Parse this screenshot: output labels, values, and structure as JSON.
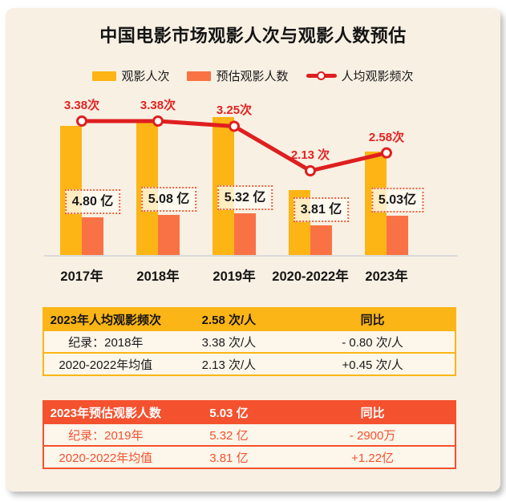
{
  "title": "中国电影市场观影人次与观影人数预估",
  "legend": [
    {
      "label": "观影人次",
      "color": "#FCB515",
      "type": "bar"
    },
    {
      "label": "预估观影人数",
      "color": "#F97245",
      "type": "bar"
    },
    {
      "label": "人均观影频次",
      "color": "#DF1F1F",
      "type": "line"
    }
  ],
  "chart_data": {
    "type": "bar+line",
    "categories": [
      "2017年",
      "2018年",
      "2019年",
      "2020-2022年",
      "2023年"
    ],
    "series": [
      {
        "name": "观影人次",
        "type": "bar",
        "unit": "亿人次",
        "color": "#FCB515",
        "values_estimated_unlabeled": [
          16.5,
          17.0,
          17.6,
          8.3,
          13.2
        ]
      },
      {
        "name": "预估观影人数",
        "type": "bar",
        "unit": "亿",
        "color": "#F97245",
        "values": [
          4.8,
          5.08,
          5.32,
          3.81,
          5.03
        ],
        "labels": [
          "4.80 亿",
          "5.08 亿",
          "5.32 亿",
          "3.81 亿",
          "5.03亿"
        ]
      },
      {
        "name": "人均观影频次",
        "type": "line",
        "unit": "次",
        "color": "#DF1F1F",
        "values": [
          3.38,
          3.38,
          3.25,
          2.13,
          2.58
        ],
        "labels": [
          "3.38次",
          "3.38次",
          "3.25次",
          "2.13 次",
          "2.58次"
        ]
      }
    ],
    "xlabel": "",
    "ylabel": "",
    "grid": false,
    "y_axis_visible": false,
    "legend_position": "top"
  },
  "frequency_table": {
    "header": [
      "2023年人均观影频次",
      "2.58 次/人",
      "同比"
    ],
    "rows": [
      [
        "纪录：2018年",
        "3.38 次/人",
        "- 0.80 次/人"
      ],
      [
        "2020-2022年均值",
        "2.13 次/人",
        "+0.45 次/人"
      ]
    ]
  },
  "viewers_table": {
    "header": [
      "2023年预估观影人数",
      "5.03 亿",
      "同比"
    ],
    "rows": [
      [
        "纪录：2019年",
        "5.32 亿",
        "- 2900万"
      ],
      [
        "2020-2022年均值",
        "3.81 亿",
        "+1.22亿"
      ]
    ]
  },
  "colors": {
    "page_bg": "#FFFFFF",
    "card_bg": "#F8F0E3",
    "bar_yellow": "#FCB515",
    "bar_orange": "#F97245",
    "line_red": "#DF1F1F",
    "value_label_red": "#E32222",
    "axis_gray": "#DBDBDB",
    "table1_accent": "#FCB516",
    "table2_accent": "#F4512E",
    "table_row_bg": "#FCF6EB",
    "text_dark": "#1A1A1A"
  }
}
